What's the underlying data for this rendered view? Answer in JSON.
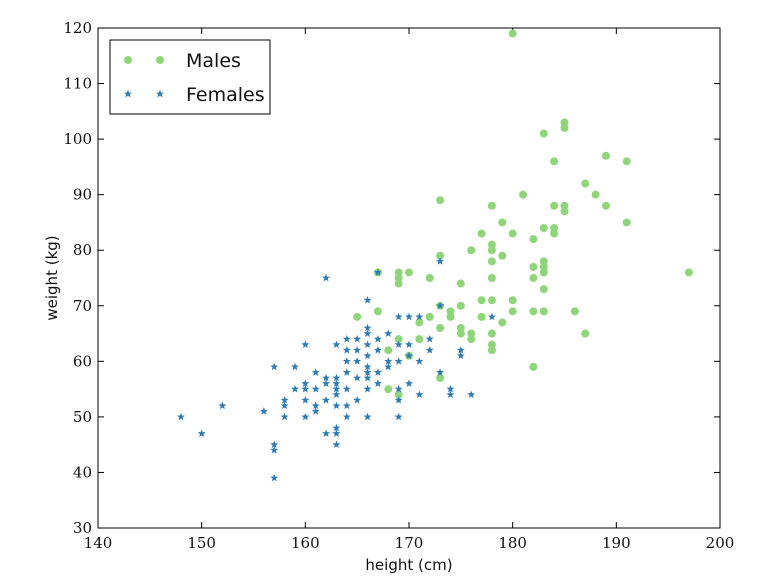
{
  "chart_data": {
    "type": "scatter",
    "title": "",
    "xlabel": "height (cm)",
    "ylabel": "weight (kg)",
    "xlim": [
      140,
      200
    ],
    "ylim": [
      30,
      120
    ],
    "xticks": [
      "140",
      "150",
      "160",
      "170",
      "180",
      "190",
      "200"
    ],
    "yticks": [
      "30",
      "40",
      "50",
      "60",
      "70",
      "80",
      "90",
      "100",
      "110",
      "120"
    ],
    "grid": false,
    "legend": "top-left",
    "series": [
      {
        "name": "Males",
        "marker": "circle",
        "color": "#8fd67a",
        "points": [
          [
            180,
            119
          ],
          [
            183,
            101
          ],
          [
            185,
            103
          ],
          [
            185,
            102
          ],
          [
            184,
            96
          ],
          [
            189,
            97
          ],
          [
            191,
            96
          ],
          [
            187,
            92
          ],
          [
            188,
            90
          ],
          [
            181,
            90
          ],
          [
            173,
            89
          ],
          [
            178,
            88
          ],
          [
            184,
            88
          ],
          [
            185,
            88
          ],
          [
            185,
            87
          ],
          [
            189,
            88
          ],
          [
            179,
            85
          ],
          [
            191,
            85
          ],
          [
            183,
            84
          ],
          [
            184,
            84
          ],
          [
            184,
            83
          ],
          [
            177,
            83
          ],
          [
            180,
            83
          ],
          [
            176,
            80
          ],
          [
            178,
            81
          ],
          [
            178,
            80
          ],
          [
            179,
            79
          ],
          [
            178,
            78
          ],
          [
            182,
            82
          ],
          [
            183,
            78
          ],
          [
            183,
            77
          ],
          [
            182,
            77
          ],
          [
            173,
            79
          ],
          [
            172,
            75
          ],
          [
            170,
            76
          ],
          [
            169,
            76
          ],
          [
            169,
            75
          ],
          [
            169,
            74
          ],
          [
            167,
            76
          ],
          [
            175,
            74
          ],
          [
            178,
            75
          ],
          [
            183,
            76
          ],
          [
            182,
            75
          ],
          [
            180,
            71
          ],
          [
            177,
            71
          ],
          [
            183,
            73
          ],
          [
            197,
            76
          ],
          [
            167,
            69
          ],
          [
            173,
            70
          ],
          [
            175,
            70
          ],
          [
            174,
            69
          ],
          [
            174,
            68
          ],
          [
            177,
            68
          ],
          [
            178,
            71
          ],
          [
            180,
            69
          ],
          [
            182,
            69
          ],
          [
            183,
            69
          ],
          [
            186,
            69
          ],
          [
            172,
            68
          ],
          [
            165,
            68
          ],
          [
            171,
            67
          ],
          [
            173,
            66
          ],
          [
            175,
            66
          ],
          [
            175,
            65
          ],
          [
            176,
            65
          ],
          [
            176,
            64
          ],
          [
            178,
            65
          ],
          [
            187,
            65
          ],
          [
            169,
            64
          ],
          [
            171,
            64
          ],
          [
            179,
            67
          ],
          [
            178,
            63
          ],
          [
            178,
            62
          ],
          [
            168,
            62
          ],
          [
            170,
            61
          ],
          [
            182,
            59
          ],
          [
            173,
            57
          ],
          [
            168,
            55
          ],
          [
            169,
            54
          ]
        ]
      },
      {
        "name": "Females",
        "marker": "star",
        "color": "#2f7bb4",
        "points": [
          [
            148,
            50
          ],
          [
            150,
            47
          ],
          [
            152,
            52
          ],
          [
            156,
            51
          ],
          [
            157,
            45
          ],
          [
            157,
            44
          ],
          [
            157,
            39
          ],
          [
            157,
            59
          ],
          [
            158,
            53
          ],
          [
            158,
            52
          ],
          [
            158,
            50
          ],
          [
            159,
            55
          ],
          [
            159,
            59
          ],
          [
            160,
            56
          ],
          [
            160,
            55
          ],
          [
            160,
            53
          ],
          [
            160,
            50
          ],
          [
            160,
            63
          ],
          [
            161,
            58
          ],
          [
            161,
            55
          ],
          [
            161,
            52
          ],
          [
            161,
            51
          ],
          [
            162,
            75
          ],
          [
            162,
            57
          ],
          [
            162,
            56
          ],
          [
            162,
            53
          ],
          [
            162,
            47
          ],
          [
            163,
            63
          ],
          [
            163,
            57
          ],
          [
            163,
            56
          ],
          [
            163,
            55
          ],
          [
            163,
            54
          ],
          [
            163,
            52
          ],
          [
            163,
            48
          ],
          [
            163,
            47
          ],
          [
            163,
            45
          ],
          [
            164,
            64
          ],
          [
            164,
            62
          ],
          [
            164,
            60
          ],
          [
            164,
            58
          ],
          [
            164,
            55
          ],
          [
            164,
            52
          ],
          [
            164,
            50
          ],
          [
            165,
            64
          ],
          [
            165,
            62
          ],
          [
            165,
            60
          ],
          [
            165,
            57
          ],
          [
            165,
            53
          ],
          [
            166,
            71
          ],
          [
            166,
            66
          ],
          [
            166,
            65
          ],
          [
            166,
            63
          ],
          [
            166,
            61
          ],
          [
            166,
            59
          ],
          [
            166,
            58
          ],
          [
            166,
            57
          ],
          [
            166,
            55
          ],
          [
            166,
            50
          ],
          [
            167,
            76
          ],
          [
            167,
            64
          ],
          [
            167,
            62
          ],
          [
            167,
            58
          ],
          [
            167,
            56
          ],
          [
            168,
            65
          ],
          [
            168,
            60
          ],
          [
            168,
            59
          ],
          [
            169,
            68
          ],
          [
            169,
            63
          ],
          [
            169,
            60
          ],
          [
            169,
            55
          ],
          [
            169,
            53
          ],
          [
            169,
            50
          ],
          [
            170,
            68
          ],
          [
            170,
            63
          ],
          [
            170,
            61
          ],
          [
            170,
            56
          ],
          [
            171,
            68
          ],
          [
            171,
            60
          ],
          [
            171,
            54
          ],
          [
            172,
            64
          ],
          [
            172,
            62
          ],
          [
            173,
            78
          ],
          [
            173,
            70
          ],
          [
            173,
            58
          ],
          [
            174,
            55
          ],
          [
            174,
            54
          ],
          [
            175,
            62
          ],
          [
            175,
            61
          ],
          [
            176,
            54
          ],
          [
            178,
            68
          ]
        ]
      }
    ]
  }
}
